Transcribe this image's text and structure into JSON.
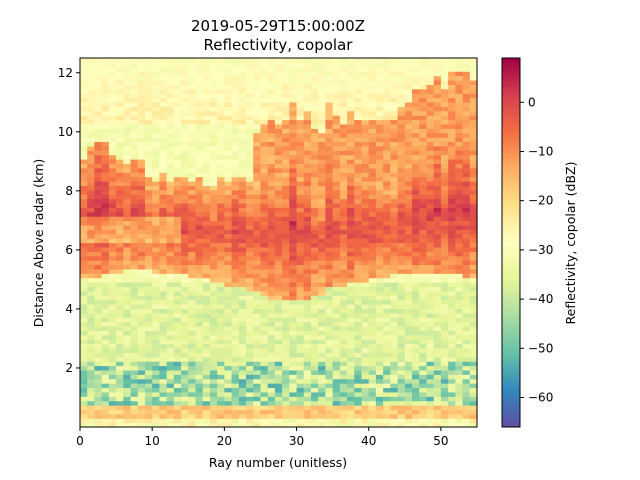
{
  "chart_data": {
    "type": "heatmap",
    "title": "2019-05-29T15:00:00Z",
    "subtitle": "Reflectivity, copolar",
    "xlabel": "Ray number (unitless)",
    "ylabel": "Distance Above radar  (km)",
    "colorbar_label": "Reflectivity, copolar (dBZ)",
    "colormap": "Spectral_r",
    "xlim": [
      0,
      55
    ],
    "ylim": [
      0,
      12.5
    ],
    "clim": [
      -66,
      9
    ],
    "x_ticks": [
      "0",
      "10",
      "20",
      "30",
      "40",
      "50"
    ],
    "y_ticks": [
      "2",
      "4",
      "6",
      "8",
      "10",
      "12"
    ],
    "colorbar_ticks": [
      "0",
      "−10",
      "−20",
      "−30",
      "−40",
      "−50",
      "−60"
    ],
    "grid": false,
    "colors": {
      "high": "#9e0142",
      "mid_high": "#f46d43",
      "mid": "#ffffbf",
      "mid_low": "#66c2a5",
      "low": "#5e4fa2"
    },
    "profile_summary": [
      {
        "height_km": 0.3,
        "dBZ": -25
      },
      {
        "height_km": 1.5,
        "dBZ": -48
      },
      {
        "height_km": 3.5,
        "dBZ": -38
      },
      {
        "height_km": 7.2,
        "dBZ": -2
      },
      {
        "height_km": 10.5,
        "dBZ": -14
      },
      {
        "height_km": 12.0,
        "dBZ": -28
      }
    ]
  }
}
